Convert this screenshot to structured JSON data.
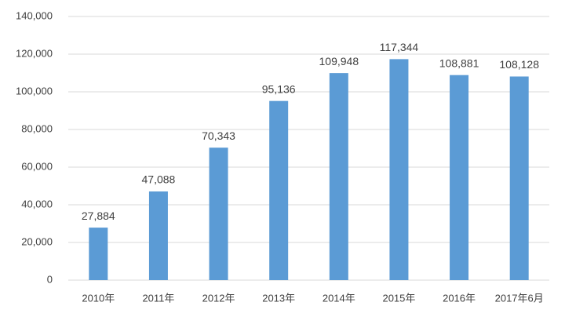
{
  "chart_data": {
    "type": "bar",
    "categories": [
      "2010年",
      "2011年",
      "2012年",
      "2013年",
      "2014年",
      "2015年",
      "2016年",
      "2017年6月"
    ],
    "values": [
      27884,
      47088,
      70343,
      95136,
      109948,
      117344,
      108881,
      108128
    ],
    "value_labels": [
      "27,884",
      "47,088",
      "70,343",
      "95,136",
      "109,948",
      "117,344",
      "108,881",
      "108,128"
    ],
    "color": "#5b9bd5",
    "ylim": [
      0,
      140000
    ],
    "yticks": [
      0,
      {
        "value": 20000,
        "label": "20,000"
      },
      {
        "value": 40000,
        "label": "40,000"
      },
      {
        "value": 60000,
        "label": "60,000"
      },
      {
        "value": 80000,
        "label": "80,000"
      },
      {
        "value": 100000,
        "label": "100,000"
      },
      {
        "value": 120000,
        "label": "120,000"
      },
      {
        "value": 140000,
        "label": "140,000"
      }
    ],
    "grid": true
  }
}
